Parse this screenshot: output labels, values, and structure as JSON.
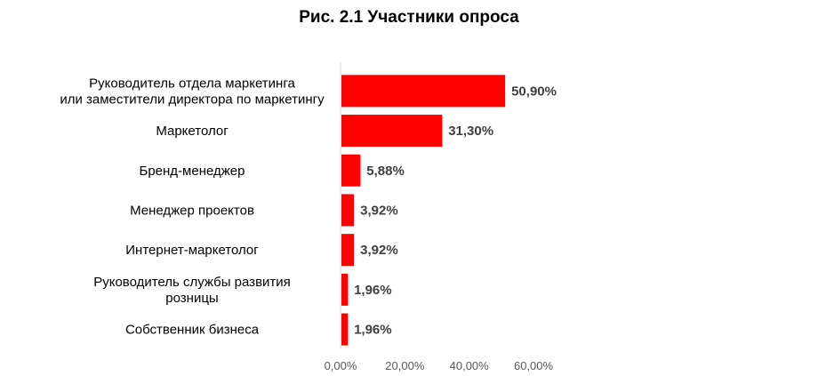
{
  "chart_data": {
    "type": "bar",
    "orientation": "horizontal",
    "title": "Рис. 2.1 Участники опроса",
    "xlabel": "",
    "ylabel": "",
    "categories": [
      [
        "Руководитель отдела маркетинга",
        "или заместители директора по маркетингу"
      ],
      [
        "Маркетолог"
      ],
      [
        "Бренд-менеджер"
      ],
      [
        "Менеджер проектов"
      ],
      [
        "Интернет-маркетолог"
      ],
      [
        "Руководитель службы развития",
        "розницы"
      ],
      [
        "Собственник бизнеса"
      ]
    ],
    "values": [
      50.9,
      31.3,
      5.88,
      3.92,
      3.92,
      1.96,
      1.96
    ],
    "data_labels": [
      "50,90%",
      "31,30%",
      "5,88%",
      "3,92%",
      "3,92%",
      "1,96%",
      "1,96%"
    ],
    "xlim": [
      0,
      60
    ],
    "xticks": [
      0,
      20,
      40,
      60
    ],
    "xtick_labels": [
      "0,00%",
      "20,00%",
      "40,00%",
      "60,00%"
    ],
    "grid": false,
    "legend": "none",
    "bar_color": "#FF0000",
    "axis_color": "#D9D9D9"
  }
}
